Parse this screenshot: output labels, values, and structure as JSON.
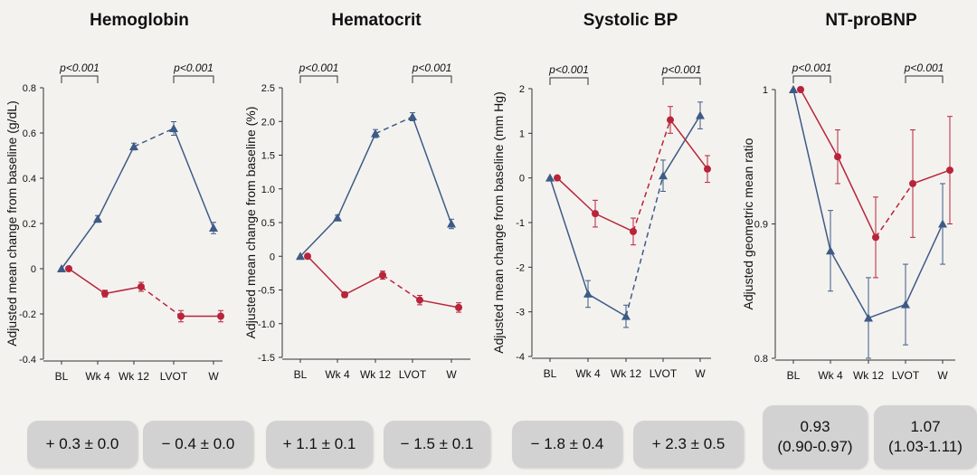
{
  "colors": {
    "blue": "#3d5b86",
    "red": "#b8243a",
    "axis": "#333333",
    "text": "#111111"
  },
  "badges": [
    {
      "line1": "+ 0.3 ± 0.0",
      "line2": ""
    },
    {
      "line1": "− 0.4 ± 0.0",
      "line2": ""
    },
    {
      "line1": "+ 1.1 ± 0.1",
      "line2": ""
    },
    {
      "line1": "− 1.5 ± 0.1",
      "line2": ""
    },
    {
      "line1": "− 1.8 ± 0.4",
      "line2": ""
    },
    {
      "line1": "+ 2.3 ± 0.5",
      "line2": ""
    },
    {
      "line1": "0.93",
      "line2": "(0.90-0.97)"
    },
    {
      "line1": "1.07",
      "line2": "(1.03-1.11)"
    }
  ],
  "chart_data": [
    {
      "type": "line",
      "title": "Hemoglobin",
      "ylabel": "Adjusted mean change from baseline (g/dL)",
      "categories": [
        "BL",
        "Wk 4",
        "Wk 12",
        "LVOT",
        "W"
      ],
      "ylim": [
        -0.4,
        0.8
      ],
      "yticks": [
        "-0.4",
        "-0.2",
        "0",
        "0.2",
        "0.4",
        "0.6",
        "0.8"
      ],
      "annotations": [
        "p<0.001",
        "p<0.001"
      ],
      "series": [
        {
          "color": "blue",
          "marker": "triangle",
          "values": [
            0,
            0.22,
            0.54,
            0.62,
            0.18
          ],
          "err": [
            0,
            0.015,
            0.015,
            0.03,
            0.025
          ],
          "dashed_segment": 2
        },
        {
          "color": "red",
          "marker": "circle",
          "values": [
            0,
            -0.11,
            -0.08,
            -0.21,
            -0.21
          ],
          "err": [
            0,
            0.015,
            0.02,
            0.025,
            0.025
          ],
          "dashed_segment": 2
        }
      ]
    },
    {
      "type": "line",
      "title": "Hematocrit",
      "ylabel": "Adjusted mean change from baseline (%)",
      "categories": [
        "BL",
        "Wk 4",
        "Wk 12",
        "LVOT",
        "W"
      ],
      "ylim": [
        -1.5,
        2.5
      ],
      "yticks": [
        "-1.5",
        "-1.0",
        "-0.5",
        "0",
        "0.5",
        "1.0",
        "1.5",
        "2.0",
        "2.5"
      ],
      "annotations": [
        "p<0.001",
        "p<0.001"
      ],
      "series": [
        {
          "color": "blue",
          "marker": "triangle",
          "values": [
            0,
            0.57,
            1.82,
            2.07,
            0.48
          ],
          "err": [
            0,
            0.04,
            0.06,
            0.06,
            0.07
          ],
          "dashed_segment": 2
        },
        {
          "color": "red",
          "marker": "circle",
          "values": [
            0,
            -0.57,
            -0.28,
            -0.65,
            -0.76
          ],
          "err": [
            0,
            0.04,
            0.06,
            0.07,
            0.07
          ],
          "dashed_segment": 2
        }
      ]
    },
    {
      "type": "line",
      "title": "Systolic BP",
      "ylabel": "Adjusted mean change from baseline (mm Hg)",
      "categories": [
        "BL",
        "Wk 4",
        "Wk 12",
        "LVOT",
        "W"
      ],
      "ylim": [
        -4,
        2
      ],
      "yticks": [
        "-4",
        "-3",
        "-2",
        "-1",
        "0",
        "1",
        "2"
      ],
      "annotations": [
        "p<0.001",
        "p<0.001"
      ],
      "series": [
        {
          "color": "blue",
          "marker": "triangle",
          "values": [
            0,
            -2.6,
            -3.1,
            0.05,
            1.4
          ],
          "err": [
            0,
            0.3,
            0.25,
            0.35,
            0.3
          ],
          "dashed_segment": 2
        },
        {
          "color": "red",
          "marker": "circle",
          "values": [
            0,
            -0.8,
            -1.2,
            1.3,
            0.2
          ],
          "err": [
            0,
            0.3,
            0.3,
            0.3,
            0.3
          ],
          "dashed_segment": 2
        }
      ]
    },
    {
      "type": "line",
      "title": "NT-proBNP",
      "ylabel": "Adjusted geometric mean ratio",
      "categories": [
        "BL",
        "Wk 4",
        "Wk 12",
        "LVOT",
        "W"
      ],
      "ylim": [
        0.8,
        1.0
      ],
      "yticks": [
        "0.8",
        "0.9",
        "1"
      ],
      "annotations": [
        "p<0.001",
        "p<0.001"
      ],
      "series": [
        {
          "color": "blue",
          "marker": "triangle",
          "values": [
            1.0,
            0.88,
            0.83,
            0.84,
            0.9
          ],
          "err": [
            0,
            0.03,
            0.03,
            0.03,
            0.03
          ],
          "dashed_segment": -1
        },
        {
          "color": "red",
          "marker": "circle",
          "values": [
            1.0,
            0.95,
            0.89,
            0.93,
            0.94
          ],
          "err": [
            0,
            0.02,
            0.03,
            0.04,
            0.04
          ],
          "dashed_segment": 2
        }
      ]
    }
  ]
}
